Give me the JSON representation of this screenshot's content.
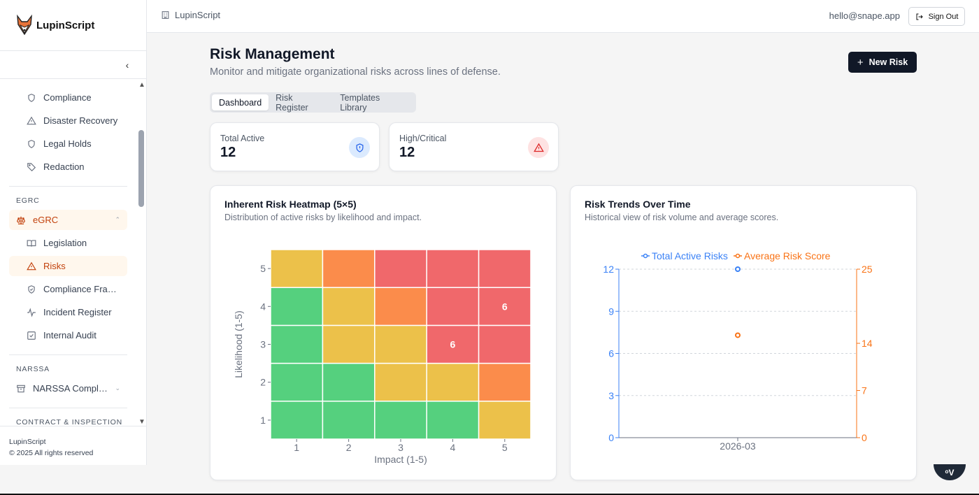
{
  "brand": {
    "name": "LupinScript"
  },
  "sidebar": {
    "items_top": [
      {
        "label": "Compliance",
        "icon": "shield-icon"
      },
      {
        "label": "Disaster Recovery",
        "icon": "warning-icon"
      },
      {
        "label": "Legal Holds",
        "icon": "shield-icon"
      },
      {
        "label": "Redaction",
        "icon": "tag-icon"
      }
    ],
    "sections": {
      "egrc": "EGRC",
      "narssa": "NARSSA",
      "contract": "CONTRACT & INSPECTION"
    },
    "egrc_group": {
      "label": "eGRC",
      "icon": "scale-icon"
    },
    "egrc_items": [
      {
        "label": "Legislation",
        "icon": "book-icon"
      },
      {
        "label": "Risks",
        "icon": "warning-icon"
      },
      {
        "label": "Compliance Frameworks",
        "icon": "shield-check-icon"
      },
      {
        "label": "Incident Register",
        "icon": "activity-icon"
      },
      {
        "label": "Internal Audit",
        "icon": "checkbox-icon"
      }
    ],
    "narssa_group": {
      "label": "NARSSA Compliance",
      "icon": "archive-icon"
    },
    "footer": {
      "line1": "LupinScript",
      "line2": "© 2025 All rights reserved"
    }
  },
  "header": {
    "crumb": "LupinScript",
    "email": "hello@snape.app",
    "sign_out": "Sign Out"
  },
  "page": {
    "title": "Risk Management",
    "subtitle": "Monitor and mitigate organizational risks across lines of defense.",
    "new_risk": "New Risk",
    "tabs": [
      "Dashboard",
      "Risk Register",
      "Templates Library"
    ],
    "active_tab": 0
  },
  "stats": [
    {
      "label": "Total Active",
      "value": "12",
      "icon": "shield-icon"
    },
    {
      "label": "High/Critical",
      "value": "12",
      "icon": "warning-icon"
    }
  ],
  "heatmap_panel": {
    "title": "Inherent Risk Heatmap (5×5)",
    "subtitle": "Distribution of active risks by likelihood and impact."
  },
  "trends_panel": {
    "title": "Risk Trends Over Time",
    "subtitle": "Historical view of risk volume and average scores."
  },
  "chart_data": [
    {
      "type": "heatmap",
      "xlabel": "Impact (1-5)",
      "ylabel": "Likelihood (1-5)",
      "x": [
        1,
        2,
        3,
        4,
        5
      ],
      "y": [
        1,
        2,
        3,
        4,
        5
      ],
      "colors": {
        "low": "#55d07e",
        "medium": "#ecc14a",
        "high": "#fb8c4b",
        "critical": "#f0686b"
      },
      "levels": [
        [
          "low",
          "low",
          "low",
          "low",
          "medium"
        ],
        [
          "low",
          "low",
          "medium",
          "medium",
          "high"
        ],
        [
          "low",
          "medium",
          "medium",
          "critical",
          "critical"
        ],
        [
          "low",
          "medium",
          "high",
          "critical",
          "critical"
        ],
        [
          "medium",
          "high",
          "critical",
          "critical",
          "critical"
        ]
      ],
      "counts": [
        {
          "likelihood": 3,
          "impact": 4,
          "value": 6
        },
        {
          "likelihood": 4,
          "impact": 5,
          "value": 6
        }
      ]
    },
    {
      "type": "line",
      "x": [
        "2026-03"
      ],
      "series": [
        {
          "name": "Total Active Risks",
          "values": [
            12
          ],
          "axis": "left",
          "color": "#3b82f6"
        },
        {
          "name": "Average Risk Score",
          "values": [
            15.2
          ],
          "axis": "right",
          "color": "#f97316"
        }
      ],
      "ylim_left": [
        0,
        12
      ],
      "yticks_left": [
        0,
        3,
        6,
        9,
        12
      ],
      "ylim_right": [
        0,
        25
      ],
      "yticks_right": [
        0,
        7,
        14,
        25
      ],
      "legend": "top",
      "grid": true
    }
  ],
  "chat": {
    "label": "ᵒV"
  }
}
